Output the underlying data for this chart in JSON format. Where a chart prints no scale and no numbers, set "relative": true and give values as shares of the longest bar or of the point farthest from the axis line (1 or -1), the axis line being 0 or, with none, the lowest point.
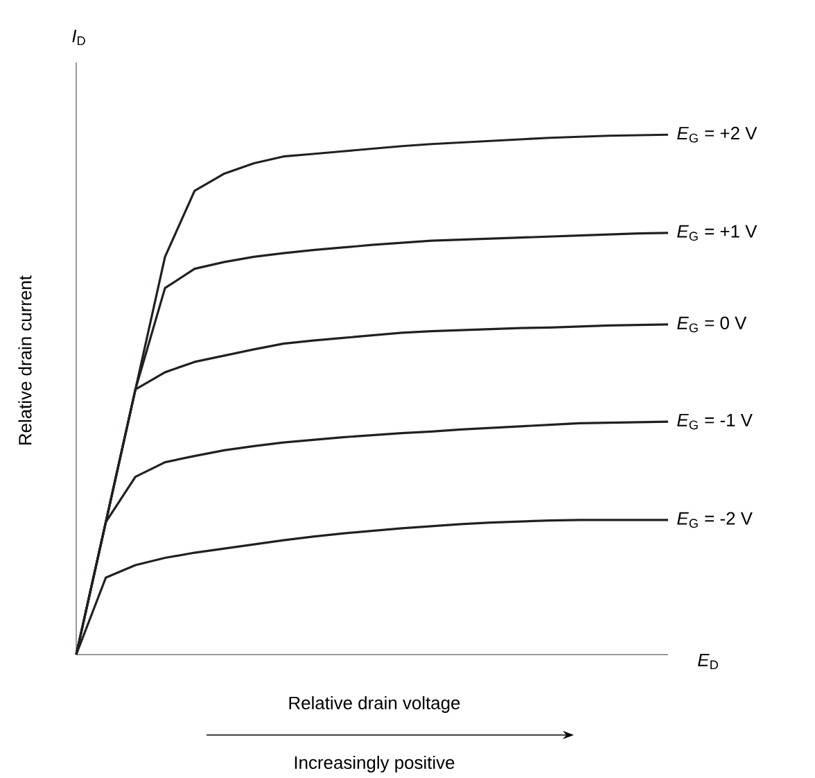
{
  "chart_data": {
    "type": "line",
    "relative": true,
    "xlabel": "Relative drain voltage",
    "ylabel": "Relative drain current",
    "annotations": [
      "*I*$_{D}$",
      "*E*$_{D}$",
      "Increasingly positive"
    ],
    "categories": [
      null,
      null,
      null,
      null,
      null,
      null,
      null,
      null,
      null,
      null,
      null,
      null,
      null,
      null,
      null,
      null,
      null,
      null,
      null,
      null,
      null
    ],
    "series": [
      {
        "name": "*E*$_{G}$ = +2 V",
        "color": "#231f20",
        "values": [
          0,
          0.255,
          0.51,
          0.765,
          0.892,
          0.925,
          0.945,
          0.958,
          0.963,
          0.968,
          0.973,
          0.978,
          0.982,
          0.985,
          0.988,
          0.991,
          0.994,
          0.996,
          0.998,
          0.999,
          1.0
        ]
      },
      {
        "name": "*E*$_{G}$ = +1 V",
        "color": "#231f20",
        "values": [
          0,
          0.255,
          0.51,
          0.705,
          0.742,
          0.755,
          0.765,
          0.772,
          0.778,
          0.783,
          0.788,
          0.792,
          0.796,
          0.798,
          0.8,
          0.802,
          0.804,
          0.806,
          0.808,
          0.81,
          0.811
        ]
      },
      {
        "name": "*E*$_{G}$ = 0 V",
        "color": "#231f20",
        "values": [
          0,
          0.255,
          0.51,
          0.543,
          0.563,
          0.575,
          0.587,
          0.598,
          0.604,
          0.609,
          0.614,
          0.619,
          0.622,
          0.624,
          0.626,
          0.628,
          0.629,
          0.631,
          0.633,
          0.634,
          0.635
        ]
      },
      {
        "name": "*E*$_{G}$ = -1 V",
        "color": "#231f20",
        "values": [
          0,
          0.255,
          0.342,
          0.37,
          0.382,
          0.393,
          0.401,
          0.408,
          0.413,
          0.418,
          0.422,
          0.426,
          0.429,
          0.433,
          0.436,
          0.439,
          0.442,
          0.445,
          0.446,
          0.447,
          0.448
        ]
      },
      {
        "name": "*E*$_{G}$ = -2 V",
        "color": "#231f20",
        "values": [
          0,
          0.148,
          0.172,
          0.186,
          0.196,
          0.204,
          0.212,
          0.22,
          0.227,
          0.233,
          0.238,
          0.243,
          0.247,
          0.251,
          0.254,
          0.256,
          0.258,
          0.259,
          0.259,
          0.259,
          0.259
        ]
      }
    ]
  }
}
